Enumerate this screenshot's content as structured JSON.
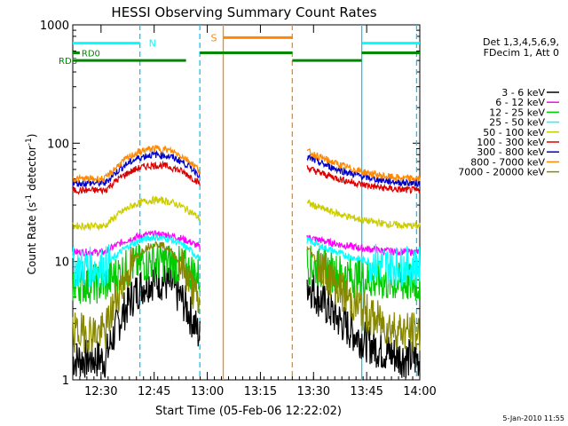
{
  "chart_data": {
    "type": "line",
    "title": "HESSI Observing Summary Count Rates",
    "xlabel": "Start Time (05-Feb-06 12:22:02)",
    "ylabel_main": "Count Rate (s",
    "ylabel_sup1": "-1",
    "ylabel_mid": " detector",
    "ylabel_sup2": "-1",
    "ylabel_end": ")",
    "timestamp": "5-Jan-2010 11:55",
    "x_range_min": [
      12.367,
      14.0
    ],
    "y_scale": "log",
    "ylim": [
      1,
      1000
    ],
    "x_ticks": [
      {
        "t": 12.5,
        "label": "12:30"
      },
      {
        "t": 12.75,
        "label": "12:45"
      },
      {
        "t": 13.0,
        "label": "13:00"
      },
      {
        "t": 13.25,
        "label": "13:15"
      },
      {
        "t": 13.5,
        "label": "13:30"
      },
      {
        "t": 13.75,
        "label": "13:45"
      },
      {
        "t": 14.0,
        "label": "14:00"
      }
    ],
    "y_ticks": [
      {
        "v": 1,
        "label": "1"
      },
      {
        "v": 10,
        "label": "10"
      },
      {
        "v": 100,
        "label": "100"
      },
      {
        "v": 1000,
        "label": "1000"
      }
    ],
    "legend_header": [
      "Det 1,3,4,5,6,9,",
      "FDecim 1, Att 0"
    ],
    "legend_position": "right",
    "series": [
      {
        "name": "3 - 6 keV",
        "color": "#000000",
        "peak": 7,
        "base": 1.5
      },
      {
        "name": "6 - 12 keV",
        "color": "#ff00ff",
        "peak": 17,
        "base": 12
      },
      {
        "name": "12 - 25 keV",
        "color": "#00cc00",
        "peak": 10,
        "base": 6.5
      },
      {
        "name": "25 - 50 keV",
        "color": "#00ffff",
        "peak": 16,
        "base": 9
      },
      {
        "name": "50 - 100 keV",
        "color": "#cccc00",
        "peak": 33,
        "base": 20
      },
      {
        "name": "100 - 300 keV",
        "color": "#dd0000",
        "peak": 65,
        "base": 40
      },
      {
        "name": "300 - 800 keV",
        "color": "#0000cc",
        "peak": 80,
        "base": 46
      },
      {
        "name": "800 - 7000 keV",
        "color": "#ff8800",
        "peak": 90,
        "base": 50
      },
      {
        "name": "7000 - 20000 keV",
        "color": "#888800",
        "peak": 14,
        "base": 2.5
      }
    ],
    "segments": [
      {
        "start": 12.367,
        "end": 12.965
      },
      {
        "start": 13.47,
        "end": 14.0
      }
    ],
    "attenuator_lines": [
      {
        "label": "N",
        "t_start": 12.367,
        "t_end": 12.683,
        "value": 700,
        "color": "#00ffff"
      },
      {
        "label": "S",
        "t_start": 13.075,
        "t_end": 13.4,
        "value": 780,
        "color": "#ff8800"
      },
      {
        "label": "RD0",
        "t_start": 12.367,
        "t_end": 12.4,
        "value": 580,
        "color": "#008800"
      },
      {
        "label": "RDS",
        "t_start": 12.367,
        "t_end": 12.9,
        "value": 500,
        "color": "#008800"
      }
    ],
    "vlines": [
      {
        "t": 12.683,
        "color": "#00ccff",
        "style": "dashed"
      },
      {
        "t": 12.965,
        "color": "#00ccff",
        "style": "dashed"
      },
      {
        "t": 13.075,
        "color": "#ff8800",
        "style": "solid"
      },
      {
        "t": 13.4,
        "color": "#ff8800",
        "style": "dashed"
      },
      {
        "t": 13.727,
        "color": "#00ccff",
        "style": "solid"
      },
      {
        "t": 13.985,
        "color": "#00ccff",
        "style": "dashed"
      }
    ]
  }
}
